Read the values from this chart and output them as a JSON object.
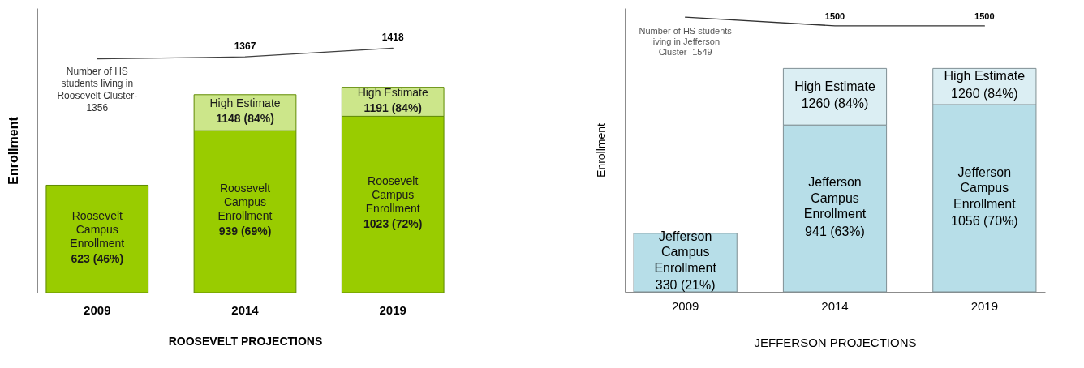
{
  "chart_data": [
    {
      "type": "bar",
      "stacked": true,
      "xlabel": "ROOSEVELT PROJECTIONS",
      "ylabel": "Enrollment",
      "categories": [
        "2009",
        "2014",
        "2019"
      ],
      "ylim": [
        0,
        1650
      ],
      "tick_labels": "x",
      "series": [
        {
          "name": "Roosevelt Campus Enrollment",
          "color": "#99cc00",
          "values": [
            623,
            939,
            1023
          ],
          "value_labels": [
            "623 (46%)",
            "939 (69%)",
            "1023 (72%)"
          ]
        },
        {
          "name": "High Estimate",
          "color": "#cce68a",
          "values": [
            null,
            209,
            168
          ]
        },
        {
          "type": "line",
          "color": "#404040",
          "values": [
            1356,
            1367,
            1418
          ],
          "value_labels": [
            null,
            "1367",
            "1418"
          ]
        }
      ],
      "totals": [
        null,
        "1148 (84%)",
        "1191 (84%)"
      ],
      "annotations": [
        {
          "text": "Number of HS students living in Roosevelt Cluster- 1356",
          "x": "2009",
          "y": 1356
        }
      ]
    },
    {
      "type": "bar",
      "stacked": true,
      "xlabel": "JEFFERSON PROJECTIONS",
      "ylabel": "Enrollment",
      "categories": [
        "2009",
        "2014",
        "2019"
      ],
      "ylim": [
        0,
        1600
      ],
      "tick_labels": "x",
      "series": [
        {
          "name": "Jefferson Campus Enrollment",
          "color": "#b7dee8",
          "values": [
            330,
            941,
            1056
          ],
          "value_labels": [
            "330 (21%)",
            "941 (63%)",
            "1056 (70%)"
          ]
        },
        {
          "name": "High Estimate",
          "color": "#dbeef3",
          "values": [
            null,
            319,
            204
          ]
        },
        {
          "type": "line",
          "color": "#333333",
          "values": [
            1549,
            1500,
            1500
          ],
          "value_labels": [
            null,
            "1500",
            "1500"
          ]
        }
      ],
      "totals": [
        null,
        "1260 (84%)",
        "1260 (84%)"
      ],
      "annotations": [
        {
          "text": "Number of HS students living in Jefferson Cluster- 1549",
          "x": "2009",
          "y": 1549
        }
      ]
    }
  ]
}
